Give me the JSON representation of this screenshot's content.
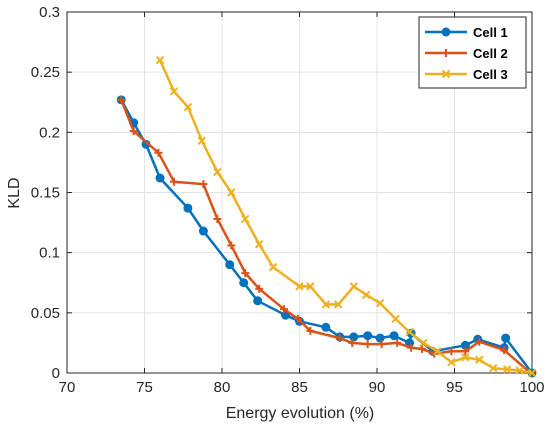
{
  "chart_data": {
    "type": "line",
    "xlabel": "Energy evolution (%)",
    "ylabel": "KLD",
    "xlim": [
      70,
      100
    ],
    "ylim": [
      0,
      0.3
    ],
    "xticks": [
      70,
      75,
      80,
      85,
      90,
      95,
      100
    ],
    "yticks": [
      0,
      0.05,
      0.1,
      0.15,
      0.2,
      0.25,
      0.3
    ],
    "xtick_labels": [
      "70",
      "75",
      "80",
      "85",
      "90",
      "95",
      "100"
    ],
    "ytick_labels": [
      "0",
      "0.05",
      "0.1",
      "0.15",
      "0.2",
      "0.25",
      "0.3"
    ],
    "grid": true,
    "legend_position": "top-right",
    "series": [
      {
        "name": "Cell 1",
        "color": "#0072BD",
        "marker": "circle",
        "x": [
          73.5,
          74.3,
          75.1,
          76.0,
          77.8,
          78.8,
          80.5,
          81.4,
          82.3,
          84.1,
          85.0,
          86.7,
          87.6,
          88.5,
          89.4,
          90.2,
          91.1,
          92.1,
          92.2,
          93.6,
          95.7,
          96.5,
          98.2,
          98.3,
          100.0
        ],
        "y": [
          0.227,
          0.208,
          0.19,
          0.162,
          0.137,
          0.118,
          0.09,
          0.075,
          0.06,
          0.048,
          0.043,
          0.038,
          0.03,
          0.03,
          0.031,
          0.029,
          0.031,
          0.025,
          0.033,
          0.018,
          0.023,
          0.028,
          0.021,
          0.029,
          0.0
        ]
      },
      {
        "name": "Cell 2",
        "color": "#D95319",
        "marker": "plus",
        "x": [
          73.5,
          74.3,
          75.9,
          76.9,
          78.8,
          79.7,
          80.6,
          81.5,
          82.4,
          84.0,
          84.9,
          85.7,
          87.6,
          88.4,
          89.4,
          90.3,
          91.3,
          92.2,
          92.9,
          93.7,
          94.8,
          95.7,
          96.6,
          98.2,
          99.9
        ],
        "y": [
          0.227,
          0.201,
          0.183,
          0.159,
          0.157,
          0.128,
          0.106,
          0.083,
          0.07,
          0.053,
          0.045,
          0.035,
          0.029,
          0.025,
          0.024,
          0.024,
          0.025,
          0.021,
          0.02,
          0.016,
          0.018,
          0.018,
          0.026,
          0.019,
          0.0
        ]
      },
      {
        "name": "Cell 3",
        "color": "#EDB120",
        "marker": "x",
        "x": [
          76.0,
          76.9,
          77.8,
          78.7,
          79.7,
          80.6,
          81.5,
          82.4,
          83.3,
          85.0,
          85.7,
          86.7,
          87.5,
          88.5,
          89.3,
          90.2,
          91.2,
          92.1,
          93.0,
          93.9,
          94.8,
          95.7,
          96.6,
          97.5,
          98.4,
          99.2,
          100.0
        ],
        "y": [
          0.26,
          0.234,
          0.221,
          0.193,
          0.167,
          0.15,
          0.128,
          0.107,
          0.088,
          0.072,
          0.072,
          0.057,
          0.057,
          0.072,
          0.065,
          0.058,
          0.045,
          0.034,
          0.025,
          0.018,
          0.009,
          0.013,
          0.011,
          0.004,
          0.003,
          0.002,
          0.0
        ]
      }
    ]
  }
}
